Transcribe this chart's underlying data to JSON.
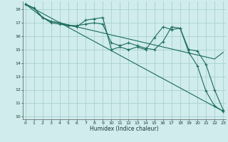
{
  "bg_color": "#d0ecec",
  "grid_color": "#a8d0d0",
  "line_color": "#1a6b5a",
  "xlabel": "Humidex (Indice chaleur)",
  "ylim": [
    9.8,
    18.6
  ],
  "xlim": [
    -0.3,
    23.3
  ],
  "yticks": [
    10,
    11,
    12,
    13,
    14,
    15,
    16,
    17,
    18
  ],
  "xticks": [
    0,
    1,
    2,
    3,
    4,
    5,
    6,
    7,
    8,
    9,
    10,
    11,
    12,
    13,
    14,
    15,
    16,
    17,
    18,
    19,
    20,
    21,
    22,
    23
  ],
  "series_straight": {
    "x": [
      0,
      23
    ],
    "y": [
      18.4,
      10.4
    ]
  },
  "series_smooth": {
    "x": [
      0,
      1,
      2,
      3,
      4,
      5,
      6,
      7,
      8,
      9,
      10,
      11,
      12,
      13,
      14,
      15,
      16,
      17,
      18,
      19,
      20,
      21,
      22,
      23
    ],
    "y": [
      18.4,
      18.1,
      17.4,
      17.1,
      17.0,
      16.85,
      16.7,
      16.55,
      16.4,
      16.25,
      16.1,
      15.95,
      15.8,
      15.65,
      15.5,
      15.35,
      15.2,
      15.05,
      14.9,
      14.75,
      14.6,
      14.45,
      14.3,
      14.8
    ]
  },
  "series_jagged1": {
    "x": [
      0,
      1,
      2,
      3,
      4,
      5,
      6,
      7,
      8,
      9,
      10,
      11,
      12,
      13,
      14,
      15,
      16,
      17,
      18,
      19,
      20,
      21,
      22,
      23
    ],
    "y": [
      18.4,
      18.1,
      17.4,
      17.1,
      17.0,
      16.8,
      16.7,
      17.2,
      17.3,
      17.4,
      15.0,
      15.2,
      15.0,
      15.2,
      15.0,
      15.9,
      16.7,
      16.5,
      16.6,
      14.8,
      13.8,
      11.9,
      10.8,
      10.4
    ]
  },
  "series_jagged2": {
    "x": [
      0,
      2,
      3,
      4,
      5,
      6,
      7,
      8,
      9,
      10,
      11,
      12,
      13,
      14,
      15,
      16,
      17,
      18,
      19,
      20,
      21,
      22,
      23
    ],
    "y": [
      18.4,
      17.4,
      17.0,
      16.9,
      16.8,
      16.8,
      16.9,
      17.0,
      16.9,
      15.5,
      15.3,
      15.5,
      15.3,
      15.1,
      15.0,
      15.6,
      16.7,
      16.6,
      15.0,
      14.9,
      13.9,
      12.0,
      10.5
    ]
  }
}
